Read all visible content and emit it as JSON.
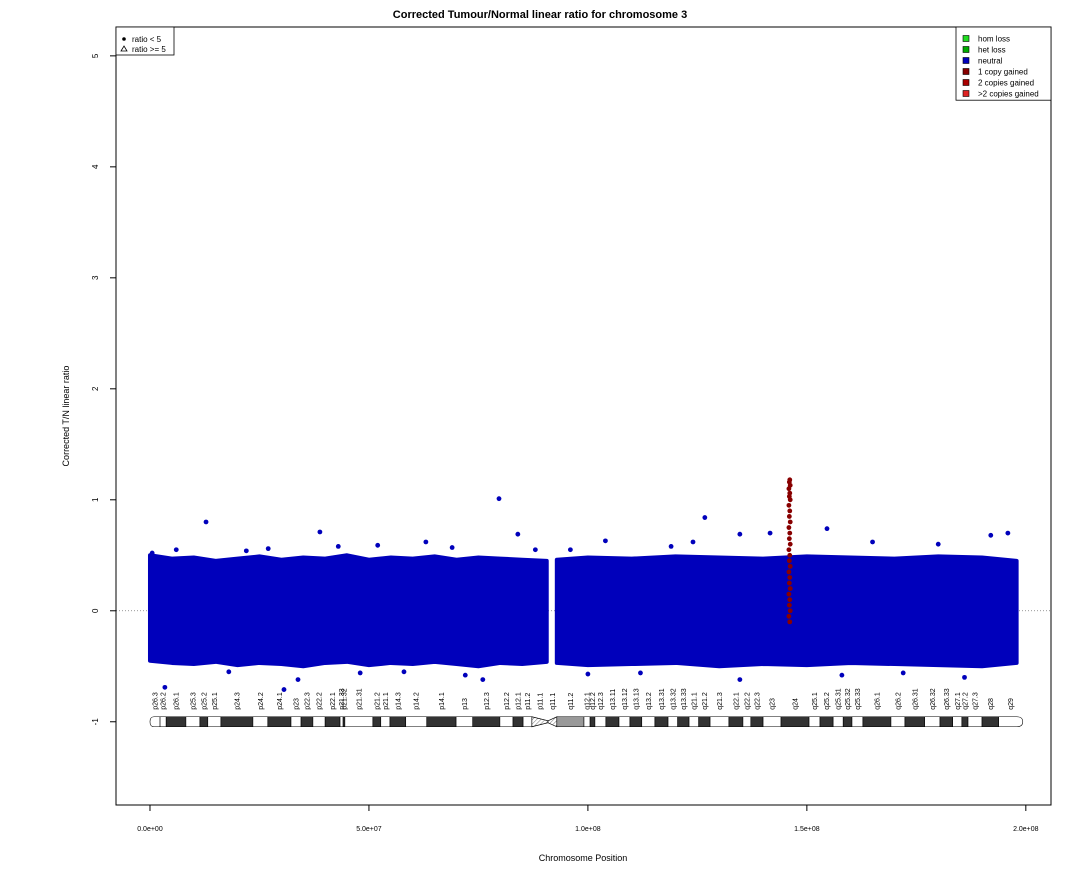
{
  "chart_data": {
    "type": "scatter",
    "title": "Corrected Tumour/Normal linear ratio for chromosome  3",
    "xlabel": "Chromosome Position",
    "ylabel": "Corrected T/N linear ratio",
    "xlim": [
      -7760000,
      205750000
    ],
    "ylim": [
      -1.75,
      5.26
    ],
    "xticks": [
      {
        "value": 0,
        "label": "0.0e+00"
      },
      {
        "value": 50000000,
        "label": "5.0e+07"
      },
      {
        "value": 100000000,
        "label": "1.0e+08"
      },
      {
        "value": 150000000,
        "label": "1.5e+08"
      },
      {
        "value": 200000000,
        "label": "2.0e+08"
      }
    ],
    "yticks": [
      -1,
      0,
      1,
      2,
      3,
      4,
      5
    ],
    "hline": 0,
    "shape_legend": [
      {
        "label": "ratio < 5",
        "shape": "circle"
      },
      {
        "label": "ratio >= 5",
        "shape": "triangle"
      }
    ],
    "series": [
      {
        "name": "hom loss",
        "color": "#22dd22",
        "x": [],
        "values": []
      },
      {
        "name": "het loss",
        "color": "#00aa00",
        "x": [],
        "values": []
      },
      {
        "name": "neutral",
        "color": "#0000bb",
        "x": [
          500000,
          3400000,
          6000000,
          12800000,
          18000000,
          22000000,
          27000000,
          30600000,
          33800000,
          38800000,
          43000000,
          48000000,
          52000000,
          58000000,
          63000000,
          69000000,
          72000000,
          76000000,
          79700000,
          84000000,
          88000000,
          96000000,
          100000000,
          104000000,
          112000000,
          119000000,
          124000000,
          126700000,
          134700000,
          134700000,
          141600000,
          154600000,
          158000000,
          165000000,
          172000000,
          180000000,
          186000000,
          192000000,
          195900000
        ],
        "values": [
          0.52,
          -0.69,
          0.55,
          0.8,
          -0.55,
          0.54,
          0.56,
          -0.71,
          -0.62,
          0.71,
          0.58,
          -0.56,
          0.59,
          -0.55,
          0.62,
          0.57,
          -0.58,
          -0.62,
          1.01,
          0.69,
          0.55,
          0.55,
          -0.57,
          0.63,
          -0.56,
          0.58,
          0.62,
          0.84,
          0.69,
          -0.62,
          0.7,
          0.74,
          -0.58,
          0.62,
          -0.56,
          0.6,
          -0.6,
          0.68,
          0.7
        ],
        "band": [
          {
            "x": [
              0,
              5000000,
              10000000,
              15000000,
              20000000,
              25000000,
              30000000,
              35000000,
              40000000,
              45000000,
              50000000,
              55000000,
              60000000,
              65000000,
              70000000,
              75000000,
              80000000,
              85000000,
              90600000
            ],
            "upper": [
              0.5,
              0.47,
              0.48,
              0.45,
              0.47,
              0.49,
              0.46,
              0.48,
              0.47,
              0.5,
              0.46,
              0.48,
              0.47,
              0.49,
              0.46,
              0.48,
              0.47,
              0.46,
              0.45
            ],
            "lower": [
              -0.45,
              -0.47,
              -0.48,
              -0.46,
              -0.49,
              -0.47,
              -0.48,
              -0.5,
              -0.47,
              -0.46,
              -0.49,
              -0.47,
              -0.48,
              -0.46,
              -0.48,
              -0.5,
              -0.47,
              -0.48,
              -0.46
            ]
          },
          {
            "x": [
              92900000,
              100000000,
              110000000,
              120000000,
              130000000,
              140000000,
              150000000,
              160000000,
              170000000,
              180000000,
              190000000,
              197900000
            ],
            "upper": [
              0.46,
              0.48,
              0.47,
              0.49,
              0.48,
              0.47,
              0.49,
              0.48,
              0.47,
              0.49,
              0.48,
              0.45
            ],
            "lower": [
              -0.47,
              -0.49,
              -0.48,
              -0.47,
              -0.5,
              -0.48,
              -0.49,
              -0.47,
              -0.48,
              -0.49,
              -0.5,
              -0.47
            ]
          }
        ]
      },
      {
        "name": "1 copy gained",
        "color": "#880000",
        "x": [
          146100000,
          145900000,
          146200000,
          146000000,
          146100000,
          145900000,
          146200000,
          146000000,
          146100000,
          145900000,
          146200000,
          146000000,
          146100000,
          145900000,
          146200000,
          146000000,
          146100000,
          145900000,
          146200000,
          146000000,
          146100000,
          145900000,
          146200000,
          146000000,
          146100000,
          145900000,
          146200000,
          146000000,
          146100000
        ],
        "values": [
          -0.1,
          -0.05,
          0,
          0.05,
          0.1,
          0.15,
          0.2,
          0.25,
          0.3,
          0.35,
          0.4,
          0.45,
          0.5,
          0.55,
          0.6,
          0.65,
          0.7,
          0.75,
          0.8,
          0.85,
          0.9,
          0.95,
          1.0,
          1.03,
          1.06,
          1.1,
          1.13,
          1.16,
          1.18
        ]
      },
      {
        "name": "2 copies gained",
        "color": "#aa0000",
        "x": [],
        "values": []
      },
      {
        "name": ">2 copies gained",
        "color": "#dd2222",
        "x": [],
        "values": []
      }
    ],
    "ideogram": {
      "bands": [
        {
          "name": "p26.3",
          "start": 0,
          "end": 2300000,
          "stain": "gneg"
        },
        {
          "name": "p26.2",
          "start": 2300000,
          "end": 3700000,
          "stain": "gneg"
        },
        {
          "name": "p26.1",
          "start": 3700000,
          "end": 8200000,
          "stain": "gpos"
        },
        {
          "name": "p25.3",
          "start": 8200000,
          "end": 11400000,
          "stain": "gneg"
        },
        {
          "name": "p25.2",
          "start": 11400000,
          "end": 13200000,
          "stain": "gpos"
        },
        {
          "name": "p25.1",
          "start": 13200000,
          "end": 16200000,
          "stain": "gneg"
        },
        {
          "name": "p24.3",
          "start": 16200000,
          "end": 23500000,
          "stain": "gpos"
        },
        {
          "name": "p24.2",
          "start": 23500000,
          "end": 26900000,
          "stain": "gneg"
        },
        {
          "name": "p24.1",
          "start": 26900000,
          "end": 32200000,
          "stain": "gpos"
        },
        {
          "name": "p23",
          "start": 32200000,
          "end": 34500000,
          "stain": "gneg"
        },
        {
          "name": "p22.3",
          "start": 34500000,
          "end": 37200000,
          "stain": "gpos"
        },
        {
          "name": "p22.2",
          "start": 37200000,
          "end": 40000000,
          "stain": "gneg"
        },
        {
          "name": "p22.1",
          "start": 40000000,
          "end": 43400000,
          "stain": "gpos"
        },
        {
          "name": "p21.33",
          "start": 43400000,
          "end": 44100000,
          "stain": "gneg"
        },
        {
          "name": "p21.32",
          "start": 44100000,
          "end": 44500000,
          "stain": "gpos"
        },
        {
          "name": "p21.31",
          "start": 44500000,
          "end": 50900000,
          "stain": "gneg"
        },
        {
          "name": "p21.2",
          "start": 50900000,
          "end": 52700000,
          "stain": "gpos"
        },
        {
          "name": "p21.1",
          "start": 52700000,
          "end": 54800000,
          "stain": "gneg"
        },
        {
          "name": "p14.3",
          "start": 54800000,
          "end": 58400000,
          "stain": "gpos"
        },
        {
          "name": "p14.2",
          "start": 58400000,
          "end": 63200000,
          "stain": "gneg"
        },
        {
          "name": "p14.1",
          "start": 63200000,
          "end": 69900000,
          "stain": "gpos"
        },
        {
          "name": "p13",
          "start": 69900000,
          "end": 73700000,
          "stain": "gneg"
        },
        {
          "name": "p12.3",
          "start": 73700000,
          "end": 79900000,
          "stain": "gpos"
        },
        {
          "name": "p12.2",
          "start": 79900000,
          "end": 82900000,
          "stain": "gneg"
        },
        {
          "name": "p12.1",
          "start": 82900000,
          "end": 85200000,
          "stain": "gpos"
        },
        {
          "name": "p11.2",
          "start": 85200000,
          "end": 87200000,
          "stain": "gneg"
        },
        {
          "name": "p11.1",
          "start": 87200000,
          "end": 90900000,
          "stain": "acen"
        },
        {
          "name": "q11.1",
          "start": 90900000,
          "end": 92900000,
          "stain": "acen"
        },
        {
          "name": "q11.2",
          "start": 92900000,
          "end": 99100000,
          "stain": "gvar"
        },
        {
          "name": "q12.1",
          "start": 99100000,
          "end": 100500000,
          "stain": "gneg"
        },
        {
          "name": "q12.2",
          "start": 100500000,
          "end": 101600000,
          "stain": "gpos"
        },
        {
          "name": "q12.3",
          "start": 101600000,
          "end": 104100000,
          "stain": "gneg"
        },
        {
          "name": "q13.11",
          "start": 104100000,
          "end": 107100000,
          "stain": "gpos"
        },
        {
          "name": "q13.12",
          "start": 107100000,
          "end": 109600000,
          "stain": "gneg"
        },
        {
          "name": "q13.13",
          "start": 109600000,
          "end": 112300000,
          "stain": "gpos"
        },
        {
          "name": "q13.2",
          "start": 112300000,
          "end": 115300000,
          "stain": "gneg"
        },
        {
          "name": "q13.31",
          "start": 115300000,
          "end": 118300000,
          "stain": "gpos"
        },
        {
          "name": "q13.32",
          "start": 118300000,
          "end": 120500000,
          "stain": "gneg"
        },
        {
          "name": "q13.33",
          "start": 120500000,
          "end": 123100000,
          "stain": "gpos"
        },
        {
          "name": "q21.1",
          "start": 123100000,
          "end": 125300000,
          "stain": "gneg"
        },
        {
          "name": "q21.2",
          "start": 125300000,
          "end": 127900000,
          "stain": "gpos"
        },
        {
          "name": "q21.3",
          "start": 127900000,
          "end": 132200000,
          "stain": "gneg"
        },
        {
          "name": "q22.1",
          "start": 132200000,
          "end": 135400000,
          "stain": "gpos"
        },
        {
          "name": "q22.2",
          "start": 135400000,
          "end": 137200000,
          "stain": "gneg"
        },
        {
          "name": "q22.3",
          "start": 137200000,
          "end": 140000000,
          "stain": "gpos"
        },
        {
          "name": "q23",
          "start": 140000000,
          "end": 144100000,
          "stain": "gneg"
        },
        {
          "name": "q24",
          "start": 144100000,
          "end": 150500000,
          "stain": "gpos"
        },
        {
          "name": "q25.1",
          "start": 150500000,
          "end": 153000000,
          "stain": "gneg"
        },
        {
          "name": "q25.2",
          "start": 153000000,
          "end": 156000000,
          "stain": "gpos"
        },
        {
          "name": "q25.31",
          "start": 156000000,
          "end": 158300000,
          "stain": "gneg"
        },
        {
          "name": "q25.32",
          "start": 158300000,
          "end": 160300000,
          "stain": "gpos"
        },
        {
          "name": "q25.33",
          "start": 160300000,
          "end": 162800000,
          "stain": "gneg"
        },
        {
          "name": "q26.1",
          "start": 162800000,
          "end": 169200000,
          "stain": "gpos"
        },
        {
          "name": "q26.2",
          "start": 169200000,
          "end": 172400000,
          "stain": "gneg"
        },
        {
          "name": "q26.31",
          "start": 172400000,
          "end": 176900000,
          "stain": "gpos"
        },
        {
          "name": "q26.32",
          "start": 176900000,
          "end": 180400000,
          "stain": "gneg"
        },
        {
          "name": "q26.33",
          "start": 180400000,
          "end": 183300000,
          "stain": "gpos"
        },
        {
          "name": "q27.1",
          "start": 183300000,
          "end": 185400000,
          "stain": "gneg"
        },
        {
          "name": "q27.2",
          "start": 185400000,
          "end": 186800000,
          "stain": "gpos"
        },
        {
          "name": "q27.3",
          "start": 186800000,
          "end": 190000000,
          "stain": "gneg"
        },
        {
          "name": "q28",
          "start": 190000000,
          "end": 193800000,
          "stain": "gpos"
        },
        {
          "name": "q29",
          "start": 193800000,
          "end": 199300000,
          "stain": "gneg"
        }
      ]
    }
  }
}
